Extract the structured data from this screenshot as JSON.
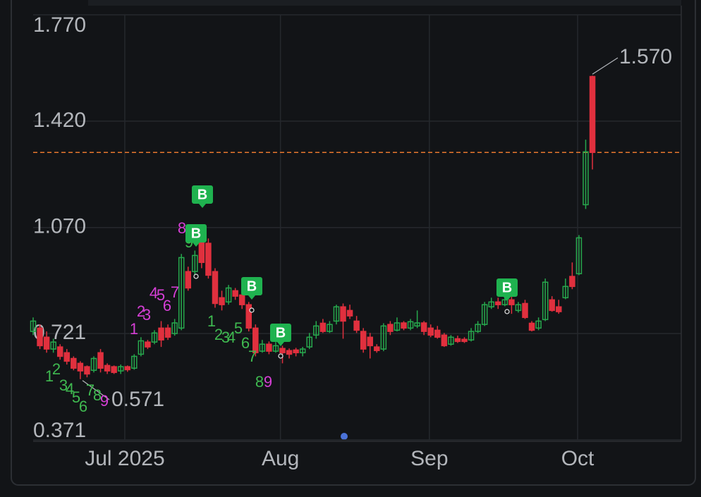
{
  "chart_data": {
    "type": "candlestick",
    "up_color": "#27a84d",
    "down_color": "#e0303e",
    "series": [
      {
        "open": [
          0.728,
          0.739,
          0.709,
          0.67,
          0.677,
          0.658,
          0.639,
          0.623,
          0.612,
          0.6,
          0.658,
          0.616,
          0.612,
          0.598,
          0.612,
          0.607,
          0.653,
          0.693,
          0.693,
          0.739,
          0.739,
          0.721,
          0.739,
          0.925,
          0.925,
          1.052,
          1.018,
          0.925,
          0.839,
          0.825,
          0.862,
          0.848,
          0.816,
          0.739,
          0.663,
          0.686,
          0.663,
          0.672,
          0.665,
          0.667,
          0.658,
          0.677,
          0.716,
          0.755,
          0.728,
          0.762,
          0.809,
          0.797,
          0.762,
          0.728,
          0.709,
          0.677,
          0.67,
          0.751,
          0.732,
          0.756,
          0.739,
          0.746,
          0.756,
          0.739,
          0.732,
          0.716,
          0.686,
          0.704,
          0.702,
          0.7,
          0.728,
          0.751,
          0.809,
          0.825,
          0.816,
          0.832,
          0.797,
          0.82,
          0.755,
          0.739,
          0.767,
          0.832,
          0.809,
          0.839,
          0.909,
          0.918,
          1.145,
          1.567
        ],
        "high": [
          0.774,
          0.751,
          0.728,
          0.704,
          0.686,
          0.67,
          0.646,
          0.63,
          0.616,
          0.646,
          0.67,
          0.623,
          0.616,
          0.619,
          0.616,
          0.653,
          0.709,
          0.7,
          0.732,
          0.762,
          0.751,
          0.769,
          0.983,
          0.941,
          0.994,
          1.064,
          1.034,
          0.936,
          0.862,
          0.881,
          0.871,
          0.867,
          0.825,
          0.751,
          0.7,
          0.695,
          0.693,
          0.681,
          0.672,
          0.674,
          0.677,
          0.723,
          0.762,
          0.769,
          0.762,
          0.816,
          0.82,
          0.816,
          0.779,
          0.739,
          0.723,
          0.686,
          0.755,
          0.762,
          0.774,
          0.762,
          0.769,
          0.797,
          0.762,
          0.751,
          0.746,
          0.723,
          0.716,
          0.714,
          0.709,
          0.739,
          0.762,
          0.825,
          0.839,
          0.839,
          0.855,
          0.848,
          0.825,
          0.832,
          0.762,
          0.774,
          0.902,
          0.844,
          0.832,
          0.902,
          0.955,
          1.045,
          1.359,
          1.57
        ],
        "low": [
          0.716,
          0.67,
          0.658,
          0.658,
          0.635,
          0.619,
          0.6,
          0.571,
          0.577,
          0.593,
          0.593,
          0.588,
          0.588,
          0.588,
          0.595,
          0.602,
          0.646,
          0.67,
          0.686,
          0.677,
          0.7,
          0.714,
          0.732,
          0.862,
          0.913,
          0.936,
          0.902,
          0.806,
          0.797,
          0.816,
          0.832,
          0.802,
          0.728,
          0.646,
          0.658,
          0.653,
          0.658,
          0.623,
          0.639,
          0.646,
          0.646,
          0.67,
          0.704,
          0.723,
          0.723,
          0.751,
          0.704,
          0.769,
          0.723,
          0.658,
          0.639,
          0.658,
          0.663,
          0.716,
          0.728,
          0.732,
          0.732,
          0.739,
          0.716,
          0.709,
          0.704,
          0.677,
          0.681,
          0.69,
          0.69,
          0.695,
          0.723,
          0.746,
          0.802,
          0.802,
          0.811,
          0.786,
          0.79,
          0.769,
          0.728,
          0.732,
          0.762,
          0.793,
          0.786,
          0.834,
          0.867,
          0.913,
          1.131,
          1.261
        ],
        "close": [
          0.762,
          0.681,
          0.67,
          0.693,
          0.646,
          0.63,
          0.607,
          0.598,
          0.588,
          0.639,
          0.607,
          0.598,
          0.593,
          0.612,
          0.602,
          0.646,
          0.697,
          0.677,
          0.723,
          0.7,
          0.709,
          0.756,
          0.971,
          0.871,
          0.978,
          0.955,
          0.913,
          0.82,
          0.816,
          0.871,
          0.844,
          0.816,
          0.739,
          0.658,
          0.686,
          0.663,
          0.681,
          0.658,
          0.653,
          0.658,
          0.67,
          0.709,
          0.746,
          0.728,
          0.751,
          0.809,
          0.762,
          0.779,
          0.732,
          0.67,
          0.681,
          0.665,
          0.746,
          0.728,
          0.756,
          0.739,
          0.76,
          0.756,
          0.728,
          0.716,
          0.709,
          0.681,
          0.709,
          0.695,
          0.695,
          0.728,
          0.751,
          0.816,
          0.825,
          0.816,
          0.832,
          0.816,
          0.816,
          0.774,
          0.732,
          0.762,
          0.89,
          0.797,
          0.793,
          0.876,
          0.876,
          1.036,
          1.319,
          1.317
        ]
      }
    ],
    "ylim": [
      0.371,
      1.77
    ],
    "yticks": [
      {
        "value": 0.371,
        "label": "0.371"
      },
      {
        "value": 0.721,
        "label": "0.721"
      },
      {
        "value": 1.07,
        "label": "1.070"
      },
      {
        "value": 1.42,
        "label": "1.420"
      },
      {
        "value": 1.77,
        "label": "1.770"
      }
    ],
    "xlim": [
      0,
      96.6
    ],
    "xticks": [
      {
        "value": 13.6,
        "label": "Jul 2025"
      },
      {
        "value": 36.7,
        "label": "Aug"
      },
      {
        "value": 58.8,
        "label": "Sep"
      },
      {
        "value": 80.8,
        "label": "Oct"
      }
    ],
    "grid": true,
    "max_label": {
      "value": 1.57,
      "label": "1.570"
    },
    "min_label": {
      "value": 0.571,
      "label": "0.571"
    },
    "last_price_line": {
      "value": 1.317,
      "color": "#e8772e"
    },
    "buy_markers": {
      "color": "#1fb24f",
      "labels": [
        "B",
        "B",
        "B",
        "B",
        "B"
      ]
    },
    "sequence_labels": [
      {
        "label": "1",
        "color": "#3fb950"
      },
      {
        "label": "2",
        "color": "#3fb950"
      },
      {
        "label": "3",
        "color": "#3fb950"
      },
      {
        "label": "4",
        "color": "#3fb950"
      },
      {
        "label": "5",
        "color": "#3fb950"
      },
      {
        "label": "6",
        "color": "#3fb950"
      },
      {
        "label": "7",
        "color": "#3fb950"
      },
      {
        "label": "8",
        "color": "#3fb950"
      },
      {
        "label": "9",
        "color": "#d63fd6"
      },
      {
        "label": "1",
        "color": "#d63fd6"
      },
      {
        "label": "2",
        "color": "#d63fd6"
      },
      {
        "label": "3",
        "color": "#d63fd6"
      },
      {
        "label": "4",
        "color": "#d63fd6"
      },
      {
        "label": "5",
        "color": "#d63fd6"
      },
      {
        "label": "6",
        "color": "#d63fd6"
      },
      {
        "label": "7",
        "color": "#d63fd6"
      },
      {
        "label": "8",
        "color": "#d63fd6"
      },
      {
        "label": "9",
        "color": "#3fb950"
      },
      {
        "label": "1",
        "color": "#3fb950"
      },
      {
        "label": "2",
        "color": "#3fb950"
      },
      {
        "label": "3",
        "color": "#3fb950"
      },
      {
        "label": "4",
        "color": "#3fb950"
      },
      {
        "label": "5",
        "color": "#3fb950"
      },
      {
        "label": "6",
        "color": "#3fb950"
      },
      {
        "label": "7",
        "color": "#3fb950"
      },
      {
        "label": "8",
        "color": "#3fb950"
      },
      {
        "label": "9",
        "color": "#d63fd6"
      }
    ]
  }
}
